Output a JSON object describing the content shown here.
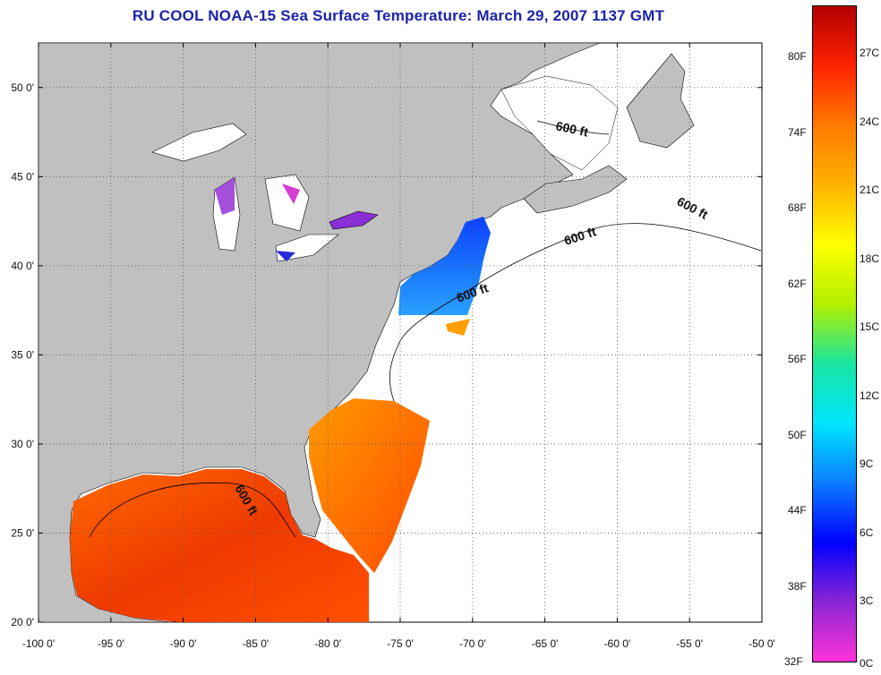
{
  "title": "RU COOL  NOAA-15  Sea Surface Temperature:  March 29, 2007 1137 GMT",
  "map": {
    "lon_range": [
      -100,
      -50
    ],
    "lat_range": [
      20,
      52.5
    ],
    "x_ticks": [
      "-100 0'",
      "-95 0'",
      "-90 0'",
      "-85 0'",
      "-80 0'",
      "-75 0'",
      "-70 0'",
      "-65 0'",
      "-60 0'",
      "-55 0'",
      "-50 0'"
    ],
    "y_ticks": [
      "50 0'",
      "45 0'",
      "40 0'",
      "35 0'",
      "30 0'",
      "25 0'",
      "20 0'"
    ],
    "contour_label": "600 ft",
    "colors": {
      "land": "#c0c0c0",
      "nodata": "#ffffff",
      "grid": "#555555"
    }
  },
  "colorbar": {
    "f_labels": [
      "80F",
      "74F",
      "68F",
      "62F",
      "56F",
      "50F",
      "44F",
      "38F",
      "32F"
    ],
    "c_labels": [
      "27C",
      "24C",
      "21C",
      "18C",
      "15C",
      "12C",
      "9C",
      "6C",
      "3C",
      "0C"
    ],
    "stops": [
      "#ff33d9",
      "#8a26d4",
      "#0000ff",
      "#0b7dff",
      "#00e6ff",
      "#19e6a0",
      "#b2f000",
      "#ffff00",
      "#ffb300",
      "#ff7a00",
      "#ff2200",
      "#b30000"
    ]
  }
}
